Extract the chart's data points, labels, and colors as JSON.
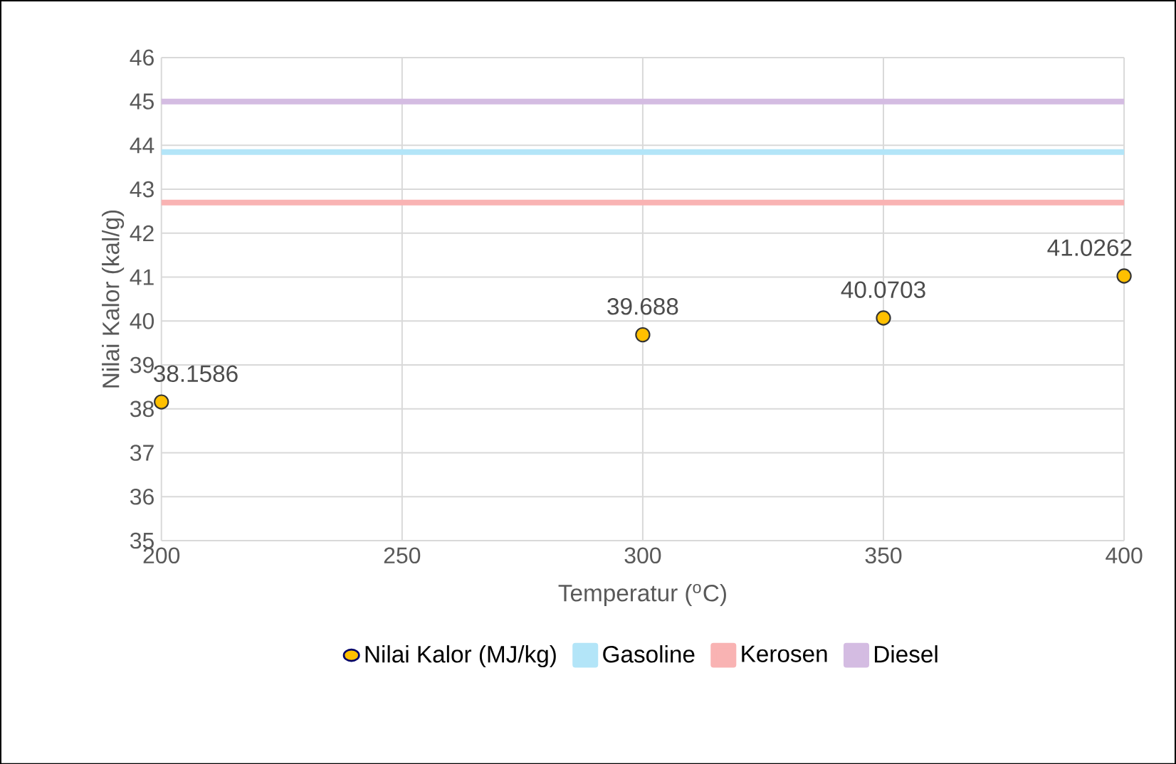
{
  "chart_data": {
    "type": "scatter",
    "xlabel": "Temperatur ($^{o}$C)",
    "ylabel": "Nilai Kalor (kal/g)",
    "xlim": [
      200,
      400
    ],
    "ylim": [
      35,
      46
    ],
    "xticks": [
      200,
      250,
      300,
      350,
      400
    ],
    "yticks": [
      35,
      36,
      37,
      38,
      39,
      40,
      41,
      42,
      43,
      44,
      45,
      46
    ],
    "grid": true,
    "legend": "bottom",
    "series": [
      {
        "name": "Nilai Kalor (MJ/kg)",
        "marker": "circle",
        "color": "#ffc000",
        "x": [
          200,
          300,
          350,
          400
        ],
        "values": [
          38.1586,
          39.688,
          40.0703,
          41.0262
        ],
        "value_labels": [
          "38.1586",
          "39.688",
          "40.0703",
          "41.0262"
        ]
      },
      {
        "name": "Gasoline",
        "type": "line",
        "marker": "none",
        "color": "#b3e5f8",
        "x": [
          200,
          400
        ],
        "values": [
          43.85,
          43.85
        ]
      },
      {
        "name": "Kerosen",
        "type": "line",
        "marker": "none",
        "color": "#f9b3b3",
        "x": [
          200,
          400
        ],
        "values": [
          42.7,
          42.7
        ]
      },
      {
        "name": "Diesel",
        "type": "line",
        "marker": "none",
        "color": "#d4bce2",
        "x": [
          200,
          400
        ],
        "values": [
          45,
          45
        ]
      }
    ]
  }
}
